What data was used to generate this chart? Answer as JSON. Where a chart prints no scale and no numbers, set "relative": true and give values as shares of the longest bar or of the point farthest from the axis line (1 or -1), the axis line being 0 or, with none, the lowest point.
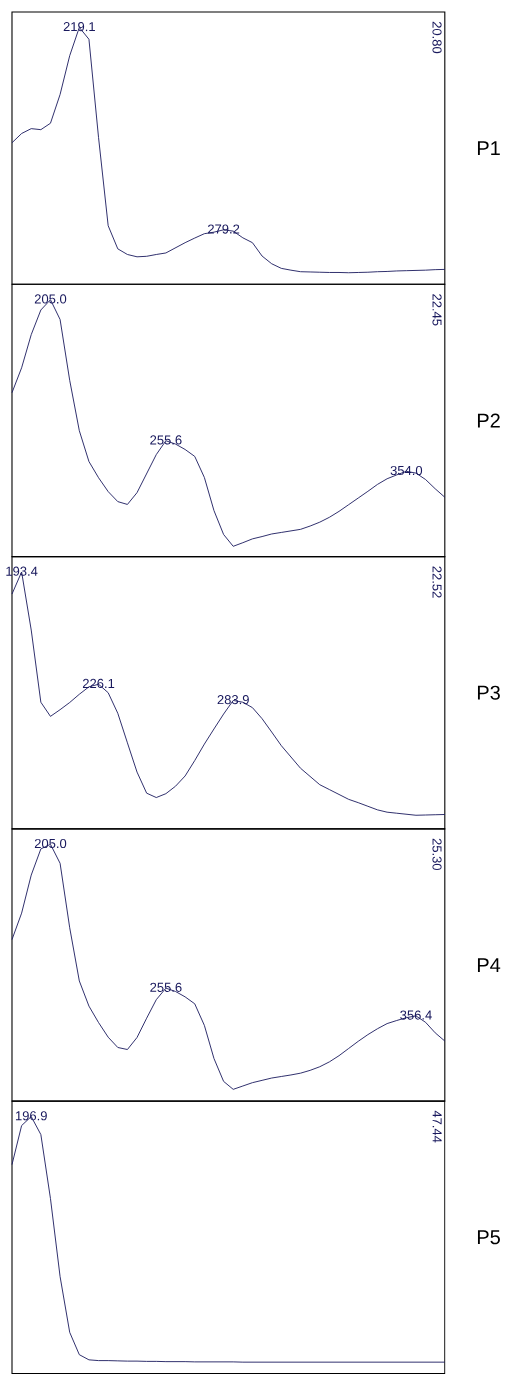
{
  "chart_data": [
    {
      "type": "line",
      "relative": true,
      "color": "#1a1a5e",
      "categories": [
        null,
        null,
        null,
        null,
        null,
        null,
        null,
        null,
        null,
        null,
        null,
        null,
        null,
        null,
        null,
        null,
        null,
        null,
        null,
        null,
        null,
        null,
        null,
        null,
        null,
        null,
        null,
        null,
        null,
        null,
        null,
        null,
        null,
        null,
        null,
        null,
        null,
        null,
        null,
        null,
        null,
        null,
        null,
        null,
        null,
        null
      ],
      "values": [
        0.551,
        0.587,
        0.606,
        0.602,
        0.627,
        0.739,
        0.89,
        1.0,
        0.954,
        0.571,
        0.228,
        0.138,
        0.116,
        0.107,
        0.109,
        0.116,
        0.122,
        0.142,
        0.162,
        0.18,
        0.197,
        0.203,
        0.212,
        0.207,
        0.181,
        0.162,
        0.11,
        0.08,
        0.062,
        0.055,
        0.049,
        0.048,
        0.047,
        0.046,
        0.046,
        0.045,
        0.046,
        0.047,
        0.049,
        0.05,
        0.052,
        0.053,
        0.054,
        0.055,
        0.057,
        0.058
      ],
      "annotations": [
        {
          "text": "219.1",
          "y": 1.0
        },
        {
          "text": "279.2",
          "y": 0.212
        },
        "20.80",
        "P1"
      ]
    },
    {
      "type": "line",
      "relative": true,
      "color": "#1a1a5e",
      "categories": [
        null,
        null,
        null,
        null,
        null,
        null,
        null,
        null,
        null,
        null,
        null,
        null,
        null,
        null,
        null,
        null,
        null,
        null,
        null,
        null,
        null,
        null,
        null,
        null,
        null,
        null,
        null,
        null,
        null,
        null,
        null,
        null,
        null,
        null,
        null,
        null,
        null,
        null,
        null,
        null,
        null,
        null,
        null,
        null,
        null,
        null
      ],
      "values": [
        0.638,
        0.735,
        0.864,
        0.96,
        1.0,
        0.923,
        0.686,
        0.49,
        0.37,
        0.307,
        0.253,
        0.214,
        0.203,
        0.249,
        0.323,
        0.397,
        0.451,
        0.438,
        0.417,
        0.39,
        0.308,
        0.179,
        0.086,
        0.04,
        0.054,
        0.069,
        0.078,
        0.088,
        0.094,
        0.1,
        0.106,
        0.119,
        0.134,
        0.153,
        0.176,
        0.202,
        0.228,
        0.254,
        0.281,
        0.303,
        0.318,
        0.332,
        0.325,
        0.3,
        0.264,
        0.231
      ],
      "annotations": [
        {
          "text": "205.0",
          "y": 1.0
        },
        {
          "text": "255.6",
          "y": 0.451
        },
        {
          "text": "354.0",
          "y": 0.332
        },
        "22.45",
        "P2"
      ]
    },
    {
      "type": "line",
      "relative": true,
      "color": "#1a1a5e",
      "categories": [
        null,
        null,
        null,
        null,
        null,
        null,
        null,
        null,
        null,
        null,
        null,
        null,
        null,
        null,
        null,
        null,
        null,
        null,
        null,
        null,
        null,
        null,
        null,
        null,
        null,
        null,
        null,
        null,
        null,
        null,
        null,
        null,
        null,
        null,
        null,
        null,
        null,
        null,
        null,
        null,
        null,
        null,
        null,
        null,
        null,
        null
      ],
      "values": [
        0.914,
        1.0,
        0.774,
        0.493,
        0.438,
        0.464,
        0.492,
        0.524,
        0.553,
        0.563,
        0.53,
        0.45,
        0.335,
        0.221,
        0.139,
        0.122,
        0.137,
        0.166,
        0.206,
        0.266,
        0.33,
        0.389,
        0.447,
        0.5,
        0.493,
        0.472,
        0.429,
        0.377,
        0.324,
        0.28,
        0.236,
        0.204,
        0.172,
        0.153,
        0.134,
        0.115,
        0.102,
        0.088,
        0.074,
        0.065,
        0.061,
        0.057,
        0.053,
        0.054,
        0.055,
        0.056
      ],
      "annotations": [
        {
          "text": "193.4",
          "y": 1.0
        },
        {
          "text": "226.1",
          "y": 0.563
        },
        {
          "text": "283.9",
          "y": 0.5
        },
        "22.52",
        "P3"
      ]
    },
    {
      "type": "line",
      "relative": true,
      "color": "#1a1a5e",
      "categories": [
        null,
        null,
        null,
        null,
        null,
        null,
        null,
        null,
        null,
        null,
        null,
        null,
        null,
        null,
        null,
        null,
        null,
        null,
        null,
        null,
        null,
        null,
        null,
        null,
        null,
        null,
        null,
        null,
        null,
        null,
        null,
        null,
        null,
        null,
        null,
        null,
        null,
        null,
        null,
        null,
        null,
        null,
        null,
        null,
        null,
        null
      ],
      "values": [
        0.629,
        0.732,
        0.88,
        0.982,
        1.0,
        0.926,
        0.675,
        0.468,
        0.37,
        0.306,
        0.249,
        0.209,
        0.201,
        0.248,
        0.323,
        0.395,
        0.44,
        0.427,
        0.406,
        0.379,
        0.295,
        0.166,
        0.077,
        0.046,
        0.059,
        0.072,
        0.081,
        0.09,
        0.096,
        0.102,
        0.109,
        0.12,
        0.134,
        0.153,
        0.177,
        0.205,
        0.233,
        0.259,
        0.282,
        0.302,
        0.314,
        0.325,
        0.332,
        0.307,
        0.266,
        0.234
      ],
      "annotations": [
        {
          "text": "205.0",
          "y": 1.0
        },
        {
          "text": "255.6",
          "y": 0.44
        },
        {
          "text": "356.4",
          "y": 0.332
        },
        "25.30",
        "P4"
      ]
    },
    {
      "type": "line",
      "relative": true,
      "color": "#1a1a5e",
      "categories": [
        null,
        null,
        null,
        null,
        null,
        null,
        null,
        null,
        null,
        null,
        null,
        null,
        null,
        null,
        null,
        null,
        null,
        null,
        null,
        null,
        null,
        null,
        null,
        null,
        null,
        null,
        null,
        null,
        null,
        null,
        null,
        null,
        null,
        null,
        null,
        null,
        null,
        null,
        null,
        null,
        null,
        null,
        null,
        null,
        null,
        null
      ],
      "values": [
        0.813,
        0.965,
        1.0,
        0.93,
        0.681,
        0.377,
        0.16,
        0.073,
        0.053,
        0.05,
        0.05,
        0.049,
        0.048,
        0.048,
        0.047,
        0.047,
        0.046,
        0.046,
        0.046,
        0.045,
        0.045,
        0.045,
        0.045,
        0.045,
        0.044,
        0.044,
        0.044,
        0.044,
        0.044,
        0.044,
        0.044,
        0.044,
        0.044,
        0.044,
        0.044,
        0.044,
        0.044,
        0.044,
        0.044,
        0.044,
        0.044,
        0.044,
        0.044,
        0.044,
        0.044,
        0.044
      ],
      "annotations": [
        {
          "text": "196.9",
          "y": 1.0
        },
        "47.44",
        "P5"
      ]
    }
  ]
}
